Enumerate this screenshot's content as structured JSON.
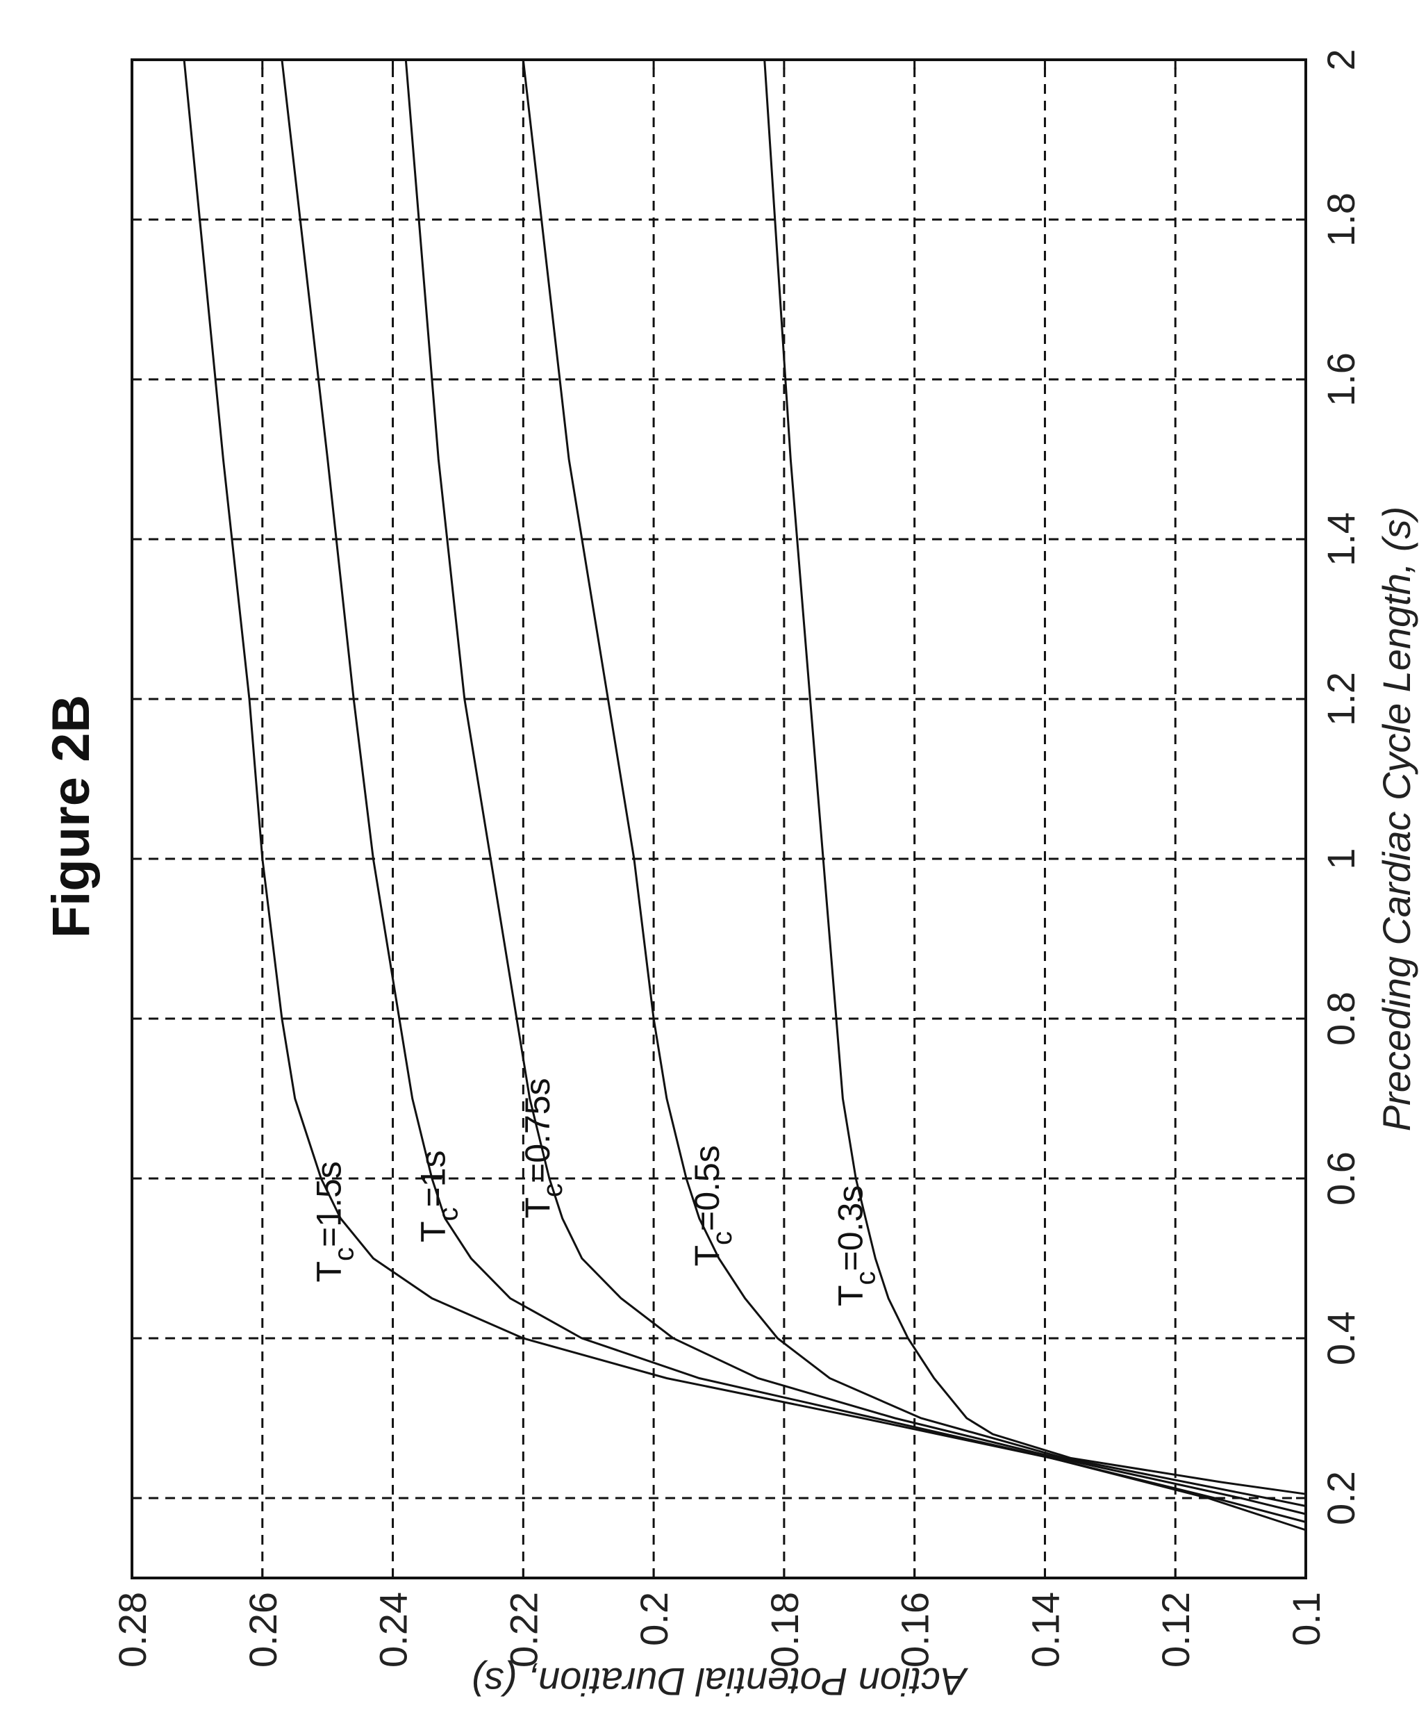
{
  "figure_title": "Figure 2B",
  "chart_data": {
    "type": "line",
    "xlabel": "Preceding Cardiac Cycle Length, (s)",
    "ylabel": "Action Potential Duration, (s)",
    "xlim": [
      0.1,
      2
    ],
    "ylim": [
      0.1,
      0.28
    ],
    "xticks": [
      "0.2",
      "0.4",
      "0.6",
      "0.8",
      "1",
      "1.2",
      "1.4",
      "1.6",
      "1.8",
      "2"
    ],
    "yticks": [
      "0.1",
      "0.12",
      "0.14",
      "0.16",
      "0.18",
      "0.2",
      "0.22",
      "0.24",
      "0.26",
      "0.28"
    ],
    "grid": true,
    "series": [
      {
        "label": "T_c=1.5s",
        "x": [
          0.16,
          0.2,
          0.25,
          0.3,
          0.35,
          0.4,
          0.45,
          0.5,
          0.55,
          0.6,
          0.7,
          0.8,
          1.0,
          1.2,
          1.5,
          2.0
        ],
        "y": [
          0.1,
          0.115,
          0.139,
          0.168,
          0.198,
          0.22,
          0.234,
          0.243,
          0.248,
          0.251,
          0.255,
          0.257,
          0.26,
          0.262,
          0.266,
          0.272
        ]
      },
      {
        "label": "T_c=1s",
        "x": [
          0.17,
          0.2,
          0.25,
          0.3,
          0.35,
          0.4,
          0.45,
          0.5,
          0.55,
          0.6,
          0.7,
          0.8,
          1.0,
          1.2,
          1.5,
          2.0
        ],
        "y": [
          0.1,
          0.114,
          0.139,
          0.166,
          0.193,
          0.211,
          0.222,
          0.228,
          0.232,
          0.234,
          0.237,
          0.239,
          0.243,
          0.246,
          0.25,
          0.257
        ]
      },
      {
        "label": "T_c=0.75s",
        "x": [
          0.18,
          0.2,
          0.25,
          0.3,
          0.35,
          0.4,
          0.45,
          0.5,
          0.55,
          0.6,
          0.7,
          0.8,
          1.0,
          1.2,
          1.5,
          2.0
        ],
        "y": [
          0.1,
          0.11,
          0.138,
          0.163,
          0.184,
          0.197,
          0.205,
          0.211,
          0.214,
          0.216,
          0.219,
          0.221,
          0.225,
          0.229,
          0.233,
          0.238
        ]
      },
      {
        "label": "T_c=0.5s",
        "x": [
          0.19,
          0.2,
          0.25,
          0.3,
          0.35,
          0.4,
          0.45,
          0.5,
          0.55,
          0.6,
          0.7,
          0.8,
          1.0,
          1.2,
          1.5,
          2.0
        ],
        "y": [
          0.1,
          0.106,
          0.137,
          0.159,
          0.173,
          0.181,
          0.186,
          0.19,
          0.193,
          0.195,
          0.198,
          0.2,
          0.203,
          0.207,
          0.213,
          0.22
        ]
      },
      {
        "label": "T_c=0.3s",
        "x": [
          0.205,
          0.22,
          0.25,
          0.28,
          0.3,
          0.35,
          0.4,
          0.45,
          0.5,
          0.6,
          0.7,
          0.8,
          1.0,
          1.2,
          1.5,
          2.0
        ],
        "y": [
          0.1,
          0.113,
          0.136,
          0.148,
          0.152,
          0.157,
          0.161,
          0.164,
          0.166,
          0.169,
          0.171,
          0.172,
          0.174,
          0.176,
          0.179,
          0.183
        ]
      }
    ],
    "labels": [
      {
        "T": "T",
        "sub": "c",
        "rest": "=1.5s",
        "x": 0.47,
        "y": 0.248
      },
      {
        "T": "T",
        "sub": "c",
        "rest": "=1s",
        "x": 0.52,
        "y": 0.232
      },
      {
        "T": "T",
        "sub": "c",
        "rest": "=0.75s",
        "x": 0.55,
        "y": 0.216
      },
      {
        "T": "T",
        "sub": "c",
        "rest": "=0.5s",
        "x": 0.49,
        "y": 0.19
      },
      {
        "T": "T",
        "sub": "c",
        "rest": "=0.3s",
        "x": 0.44,
        "y": 0.168
      }
    ]
  }
}
